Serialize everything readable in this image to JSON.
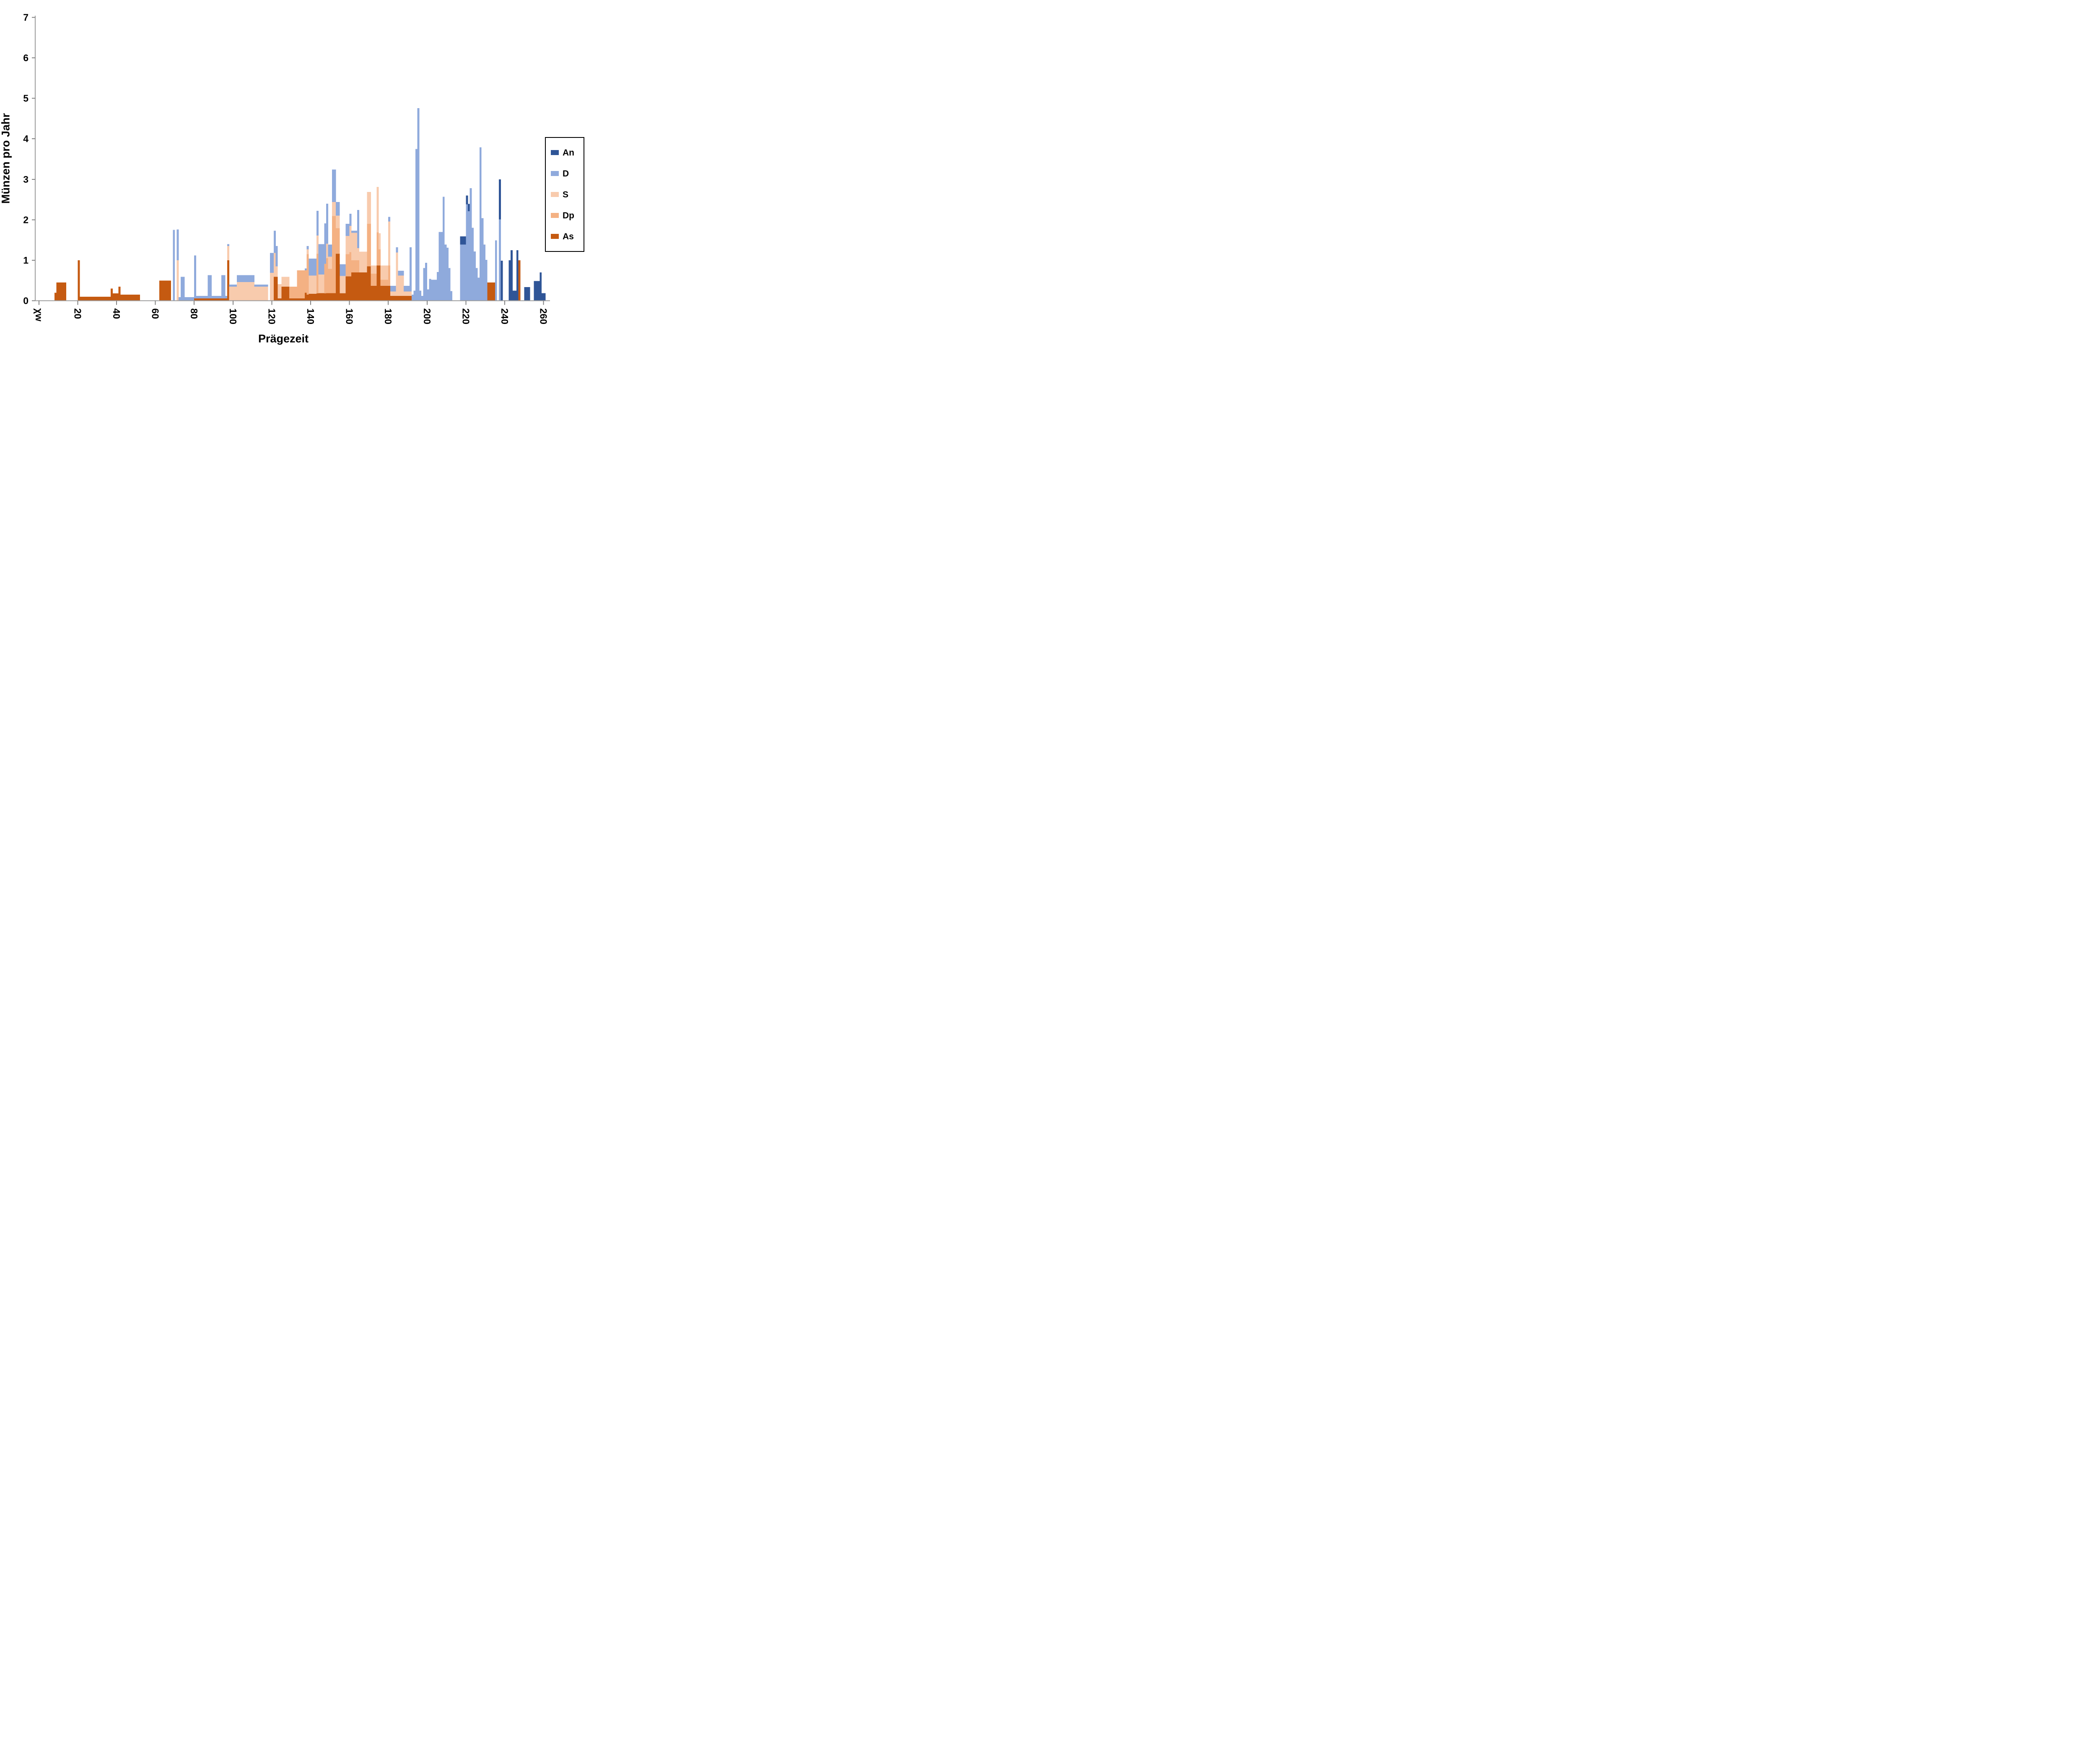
{
  "page": {
    "background": "#ffffff"
  },
  "chart_data": {
    "type": "bar",
    "stacked": true,
    "title": "",
    "xlabel": "Prägezeit",
    "ylabel": "Münzen pro Jahr",
    "ylim": [
      0,
      7
    ],
    "yticks": [
      0,
      1,
      2,
      3,
      4,
      5,
      6,
      7
    ],
    "xlim": [
      -8,
      263
    ],
    "grid": "off",
    "x_tick_label_rotation_deg": 90,
    "xticks": [
      {
        "value": 0,
        "label": "χw"
      },
      {
        "value": 20,
        "label": "20"
      },
      {
        "value": 40,
        "label": "40"
      },
      {
        "value": 60,
        "label": "60"
      },
      {
        "value": 80,
        "label": "80"
      },
      {
        "value": 100,
        "label": "100"
      },
      {
        "value": 120,
        "label": "120"
      },
      {
        "value": 140,
        "label": "140"
      },
      {
        "value": 160,
        "label": "160"
      },
      {
        "value": 180,
        "label": "180"
      },
      {
        "value": 200,
        "label": "200"
      },
      {
        "value": 220,
        "label": "220"
      },
      {
        "value": 240,
        "label": "240"
      },
      {
        "value": 260,
        "label": "260"
      }
    ],
    "legend_position": "right",
    "legend_entries": [
      {
        "name": "An",
        "color": "#2F5597"
      },
      {
        "name": "D",
        "color": "#8FAADC"
      },
      {
        "name": "S",
        "color": "#F8CBAD"
      },
      {
        "name": "Dp",
        "color": "#F4B183"
      },
      {
        "name": "As",
        "color": "#C55A11"
      }
    ],
    "series_order_bottom_to_top": [
      "As",
      "Dp",
      "S",
      "D",
      "An"
    ],
    "colors": {
      "An": "#2F5597",
      "D": "#8FAADC",
      "S": "#F8CBAD",
      "Dp": "#F4B183",
      "As": "#C55A11"
    },
    "axis_colors": {
      "axis_line": "#9b9b9b",
      "tick_mark": "#7f7f7f",
      "tick_label": "#000000"
    },
    "bars_format": "[year_from, year_to_inclusive, As, Dp, S, D, An] — Münzen pro Jahr (coins per year of minting)",
    "bars": [
      [
        8,
        8,
        0.2,
        0,
        0,
        0,
        0
      ],
      [
        9,
        13,
        0.45,
        0,
        0,
        0,
        0
      ],
      [
        20,
        20,
        1.0,
        0,
        0,
        0,
        0
      ],
      [
        21,
        36,
        0.1,
        0,
        0,
        0,
        0
      ],
      [
        37,
        37,
        0.3,
        0,
        0,
        0,
        0
      ],
      [
        38,
        40,
        0.18,
        0,
        0,
        0,
        0
      ],
      [
        41,
        41,
        0.35,
        0,
        0,
        0,
        0
      ],
      [
        42,
        51,
        0.15,
        0,
        0,
        0,
        0
      ],
      [
        62,
        67,
        0.5,
        0,
        0,
        0,
        0
      ],
      [
        69,
        69,
        0,
        0,
        0,
        1.75,
        0
      ],
      [
        71,
        71,
        0,
        0,
        1.0,
        0.76,
        0
      ],
      [
        72,
        72,
        0,
        0,
        0,
        0.09,
        0
      ],
      [
        73,
        74,
        0,
        0,
        0,
        0.59,
        0
      ],
      [
        75,
        79,
        0,
        0,
        0,
        0.09,
        0
      ],
      [
        80,
        80,
        0.06,
        0,
        0,
        1.06,
        0
      ],
      [
        81,
        86,
        0.06,
        0,
        0,
        0.06,
        0
      ],
      [
        87,
        88,
        0.06,
        0,
        0,
        0.57,
        0
      ],
      [
        89,
        93,
        0.06,
        0,
        0,
        0.06,
        0
      ],
      [
        94,
        95,
        0.06,
        0,
        0,
        0.57,
        0
      ],
      [
        96,
        96,
        0.06,
        0,
        0,
        0.06,
        0
      ],
      [
        97,
        97,
        1.0,
        0,
        0.35,
        0.05,
        0
      ],
      [
        98,
        101,
        0,
        0,
        0.35,
        0.05,
        0
      ],
      [
        102,
        110,
        0,
        0,
        0.46,
        0.17,
        0
      ],
      [
        111,
        117,
        0,
        0,
        0.35,
        0.05,
        0
      ],
      [
        119,
        120,
        0,
        0,
        0.69,
        0.49,
        0
      ],
      [
        121,
        121,
        0.59,
        0,
        0.59,
        0.55,
        0
      ],
      [
        122,
        122,
        0.59,
        0,
        0.26,
        0.5,
        0
      ],
      [
        123,
        124,
        0.06,
        0,
        0.35,
        0,
        0
      ],
      [
        125,
        128,
        0.35,
        0,
        0.24,
        0,
        0
      ],
      [
        129,
        132,
        0.06,
        0.29,
        0,
        0,
        0
      ],
      [
        133,
        136,
        0.06,
        0.69,
        0,
        0,
        0
      ],
      [
        137,
        137,
        0.2,
        0.55,
        0,
        0.05,
        0
      ],
      [
        138,
        138,
        0.15,
        1.0,
        0.12,
        0.08,
        0
      ],
      [
        139,
        142,
        0.17,
        0,
        0.45,
        0.42,
        0
      ],
      [
        143,
        143,
        0.19,
        0.97,
        0.45,
        0.61,
        0
      ],
      [
        144,
        146,
        0.19,
        0,
        0.46,
        0.75,
        0
      ],
      [
        147,
        147,
        0.19,
        0.72,
        0,
        1.0,
        0
      ],
      [
        148,
        148,
        0.19,
        0.86,
        0.36,
        0.99,
        0
      ],
      [
        149,
        150,
        0.19,
        0.6,
        0.3,
        0.3,
        0
      ],
      [
        151,
        152,
        0.19,
        1.9,
        0.35,
        0.8,
        0
      ],
      [
        153,
        154,
        1.16,
        0.63,
        0.31,
        0.34,
        0
      ],
      [
        155,
        157,
        0.19,
        0,
        0.42,
        0.29,
        0
      ],
      [
        158,
        159,
        0.6,
        0.55,
        0.45,
        0.3,
        0
      ],
      [
        160,
        160,
        0.6,
        0.6,
        0.65,
        0.3,
        0
      ],
      [
        161,
        163,
        0.7,
        0.3,
        0.68,
        0.05,
        0
      ],
      [
        164,
        164,
        0.7,
        0.3,
        0.3,
        0.94,
        0
      ],
      [
        165,
        168,
        0.7,
        0,
        0.51,
        0,
        0
      ],
      [
        169,
        170,
        0.85,
        1.05,
        0.79,
        0,
        0
      ],
      [
        171,
        173,
        0.37,
        0.3,
        0.2,
        0,
        0
      ],
      [
        174,
        174,
        0.87,
        0.82,
        1.12,
        0,
        0
      ],
      [
        175,
        175,
        0.87,
        0.4,
        0.4,
        0,
        0
      ],
      [
        176,
        179,
        0.37,
        0.15,
        0.35,
        0,
        0
      ],
      [
        180,
        180,
        0.37,
        0.5,
        1.09,
        0.11,
        0
      ],
      [
        181,
        183,
        0.12,
        0,
        0.11,
        0.14,
        0
      ],
      [
        184,
        184,
        0.12,
        0,
        1.07,
        0.13,
        0
      ],
      [
        185,
        187,
        0.12,
        0,
        0.5,
        0.12,
        0
      ],
      [
        188,
        190,
        0.12,
        0,
        0.11,
        0.14,
        0
      ],
      [
        191,
        191,
        0.12,
        0,
        0.11,
        1.09,
        0
      ],
      [
        192,
        192,
        0,
        0,
        0,
        0.15,
        0
      ],
      [
        193,
        193,
        0,
        0,
        0,
        0.25,
        0
      ],
      [
        194,
        194,
        0,
        0,
        0,
        3.75,
        0
      ],
      [
        195,
        195,
        0,
        0,
        0,
        4.76,
        0
      ],
      [
        196,
        196,
        0,
        0,
        0,
        0.25,
        0
      ],
      [
        197,
        197,
        0,
        0,
        0,
        0.12,
        0
      ],
      [
        198,
        198,
        0,
        0,
        0,
        0.81,
        0
      ],
      [
        199,
        199,
        0,
        0,
        0,
        0.94,
        0
      ],
      [
        200,
        200,
        0,
        0,
        0,
        0.28,
        0
      ],
      [
        201,
        201,
        0,
        0,
        0,
        0.54,
        0
      ],
      [
        202,
        204,
        0,
        0,
        0,
        0.52,
        0
      ],
      [
        205,
        205,
        0,
        0,
        0,
        0.71,
        0
      ],
      [
        206,
        207,
        0,
        0,
        0,
        1.7,
        0
      ],
      [
        208,
        208,
        0,
        0,
        0,
        2.57,
        0
      ],
      [
        209,
        209,
        0,
        0,
        0,
        1.39,
        0
      ],
      [
        210,
        210,
        0,
        0,
        0,
        1.31,
        0
      ],
      [
        211,
        211,
        0,
        0,
        0,
        0.81,
        0
      ],
      [
        212,
        212,
        0,
        0,
        0,
        0.24,
        0
      ],
      [
        217,
        219,
        0,
        0,
        0,
        1.39,
        0.2
      ],
      [
        220,
        220,
        0,
        0,
        0,
        2.38,
        0.22
      ],
      [
        221,
        221,
        0,
        0,
        0,
        2.21,
        0.18
      ],
      [
        222,
        222,
        0,
        0,
        0,
        2.78,
        0
      ],
      [
        223,
        223,
        0,
        0,
        0,
        1.8,
        0
      ],
      [
        224,
        224,
        0,
        0,
        0,
        1.22,
        0
      ],
      [
        225,
        225,
        0,
        0,
        0,
        0.81,
        0
      ],
      [
        226,
        226,
        0,
        0,
        0,
        0.57,
        0
      ],
      [
        227,
        227,
        0,
        0,
        0,
        3.79,
        0
      ],
      [
        228,
        228,
        0,
        0,
        0,
        2.04,
        0
      ],
      [
        229,
        229,
        0,
        0,
        0,
        1.39,
        0
      ],
      [
        230,
        230,
        0,
        0,
        0,
        1.01,
        0
      ],
      [
        231,
        234,
        0.45,
        0,
        0,
        0,
        0
      ],
      [
        235,
        235,
        0,
        0,
        0,
        1.49,
        0
      ],
      [
        237,
        237,
        0,
        0,
        0,
        2.01,
        0.99
      ],
      [
        238,
        238,
        0,
        0,
        0,
        0,
        0.99
      ],
      [
        242,
        242,
        0,
        0,
        0,
        0,
        1.0
      ],
      [
        243,
        243,
        0,
        0,
        0,
        0,
        1.25
      ],
      [
        244,
        245,
        0,
        0,
        0,
        0,
        0.25
      ],
      [
        246,
        246,
        0,
        0,
        0,
        0,
        1.25
      ],
      [
        247,
        247,
        1.0,
        0,
        0,
        0,
        0
      ],
      [
        250,
        252,
        0,
        0,
        0,
        0,
        0.34
      ],
      [
        255,
        257,
        0,
        0,
        0,
        0,
        0.49
      ],
      [
        258,
        258,
        0,
        0,
        0,
        0,
        0.7
      ],
      [
        259,
        260,
        0,
        0,
        0,
        0,
        0.19
      ]
    ]
  }
}
